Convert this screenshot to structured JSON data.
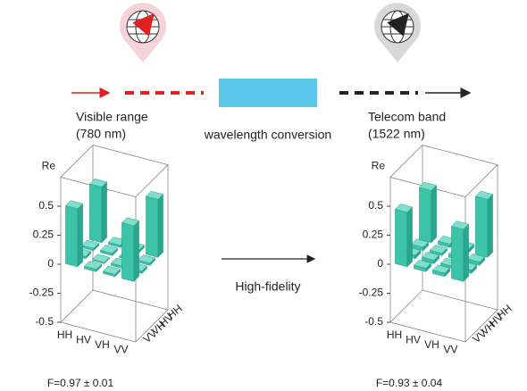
{
  "top": {
    "visible_label": "Visible range",
    "visible_wavelength": "(780 nm)",
    "conversion_label": "wavelength conversion",
    "telecom_label": "Telecom band",
    "telecom_wavelength": "(1522 nm)"
  },
  "middle_label": "High-fidelity",
  "panels": [
    {
      "axis_label": "Re",
      "zticks": [
        0.5,
        0.25,
        0,
        -0.25,
        -0.5
      ],
      "basis": [
        "HH",
        "HV",
        "VH",
        "VV"
      ],
      "matrix": [
        [
          0.5,
          0.02,
          0.02,
          0.48
        ],
        [
          0.02,
          0.01,
          0.02,
          0.02
        ],
        [
          0.02,
          0.02,
          0.01,
          0.02
        ],
        [
          0.48,
          0.02,
          0.02,
          0.5
        ]
      ],
      "fidelity": "F=0.97 ± 0.01"
    },
    {
      "axis_label": "Re",
      "zticks": [
        0.5,
        0.25,
        0,
        -0.25,
        -0.5
      ],
      "basis": [
        "HH",
        "HV",
        "VH",
        "VV"
      ],
      "matrix": [
        [
          0.47,
          0.03,
          0.03,
          0.45
        ],
        [
          0.03,
          0.03,
          0.02,
          0.03
        ],
        [
          0.03,
          0.02,
          0.03,
          0.03
        ],
        [
          0.45,
          0.03,
          0.03,
          0.5
        ]
      ],
      "fidelity": "F=0.93 ± 0.04"
    }
  ]
}
